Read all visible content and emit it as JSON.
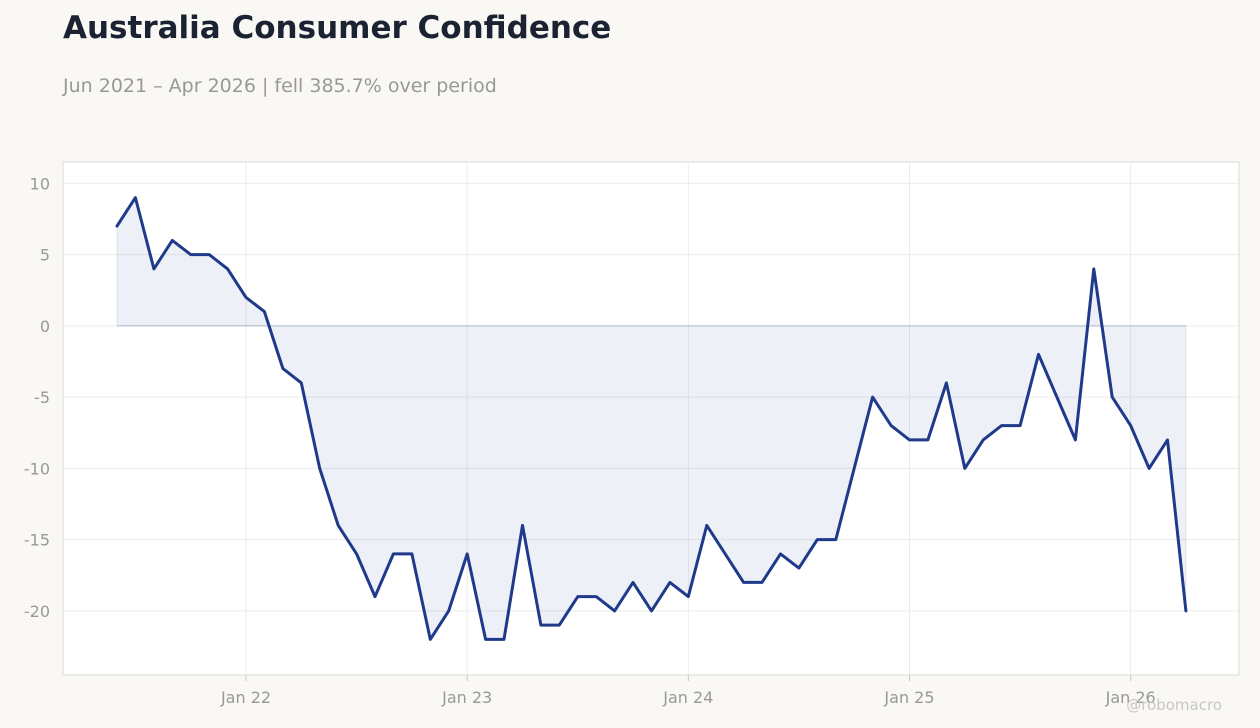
{
  "header": {
    "title": "Australia Consumer Confidence",
    "subtitle": "Jun 2021 – Apr 2026 | fell 385.7% over period"
  },
  "watermark": "@robomacro",
  "chart_data": {
    "type": "area",
    "x_start": "2021-06",
    "x_frequency": "monthly",
    "values": [
      7,
      9,
      4,
      6,
      5,
      5,
      4,
      2,
      1,
      -3,
      -4,
      -10,
      -14,
      -16,
      -19,
      -16,
      -16,
      -22,
      -20,
      -16,
      -22,
      -22,
      -14,
      -21,
      -21,
      -19,
      -19,
      -20,
      -18,
      -20,
      -18,
      -19,
      -14,
      -16,
      -18,
      -18,
      -16,
      -17,
      -15,
      -15,
      -10,
      -5,
      -7,
      -8,
      -8,
      -4,
      -10,
      -8,
      -7,
      -7,
      -2,
      -5,
      -8,
      4,
      -5,
      -7,
      -10,
      -8,
      -20
    ],
    "ylim": [
      -24.5,
      11.5
    ],
    "y_ticks": [
      10,
      5,
      0,
      -5,
      -10,
      -15,
      -20
    ],
    "x_ticks": [
      {
        "label": "Jan 22",
        "index": 7
      },
      {
        "label": "Jan 23",
        "index": 19
      },
      {
        "label": "Jan 24",
        "index": 31
      },
      {
        "label": "Jan 25",
        "index": 43
      },
      {
        "label": "Jan 26",
        "index": 55
      }
    ],
    "grid": true,
    "colors": {
      "line": "#1f3a8a",
      "fill": "#1f3a8a",
      "grid": "#ececec",
      "frame": "#dcdad4"
    }
  }
}
